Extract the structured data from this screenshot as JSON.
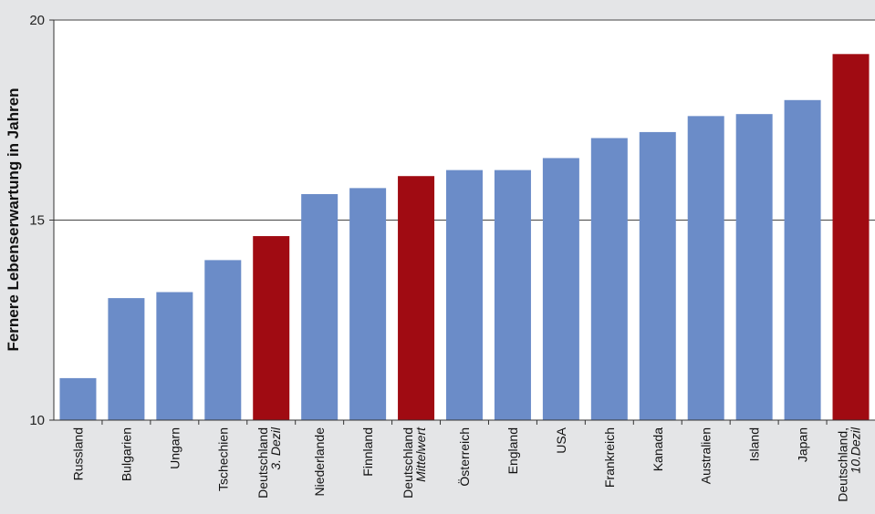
{
  "chart_data": {
    "type": "bar",
    "title": "",
    "xlabel": "",
    "ylabel": "Fernere Lebenserwartung in Jahren",
    "ylim": [
      10,
      20
    ],
    "yticks": [
      10,
      15,
      20
    ],
    "grid": true,
    "legend": "none",
    "colors": {
      "default": "#6b8cc8",
      "highlight": "#a00b12",
      "background": "#e4e5e7",
      "plot_background": "#ffffff",
      "axis": "#333333"
    },
    "categories": [
      {
        "label": "Russland",
        "sublabel": ""
      },
      {
        "label": "Bulgarien",
        "sublabel": ""
      },
      {
        "label": "Ungarn",
        "sublabel": ""
      },
      {
        "label": "Tschechien",
        "sublabel": ""
      },
      {
        "label": "Deutschland",
        "sublabel": "3. Dezil"
      },
      {
        "label": "Niederlande",
        "sublabel": ""
      },
      {
        "label": "Finnland",
        "sublabel": ""
      },
      {
        "label": "Deutschland",
        "sublabel": "Mittelwert"
      },
      {
        "label": "Österreich",
        "sublabel": ""
      },
      {
        "label": "England",
        "sublabel": ""
      },
      {
        "label": "USA",
        "sublabel": ""
      },
      {
        "label": "Frankreich",
        "sublabel": ""
      },
      {
        "label": "Kanada",
        "sublabel": ""
      },
      {
        "label": "Australien",
        "sublabel": ""
      },
      {
        "label": "Island",
        "sublabel": ""
      },
      {
        "label": "Japan",
        "sublabel": ""
      },
      {
        "label": "Deutschland,",
        "sublabel": "10.Dezil"
      }
    ],
    "values": [
      11.05,
      13.05,
      13.2,
      14.0,
      14.6,
      15.65,
      15.8,
      16.1,
      16.25,
      16.25,
      16.55,
      17.05,
      17.2,
      17.6,
      17.65,
      18.0,
      19.15
    ],
    "highlighted": [
      false,
      false,
      false,
      false,
      true,
      false,
      false,
      true,
      false,
      false,
      false,
      false,
      false,
      false,
      false,
      false,
      true
    ]
  }
}
